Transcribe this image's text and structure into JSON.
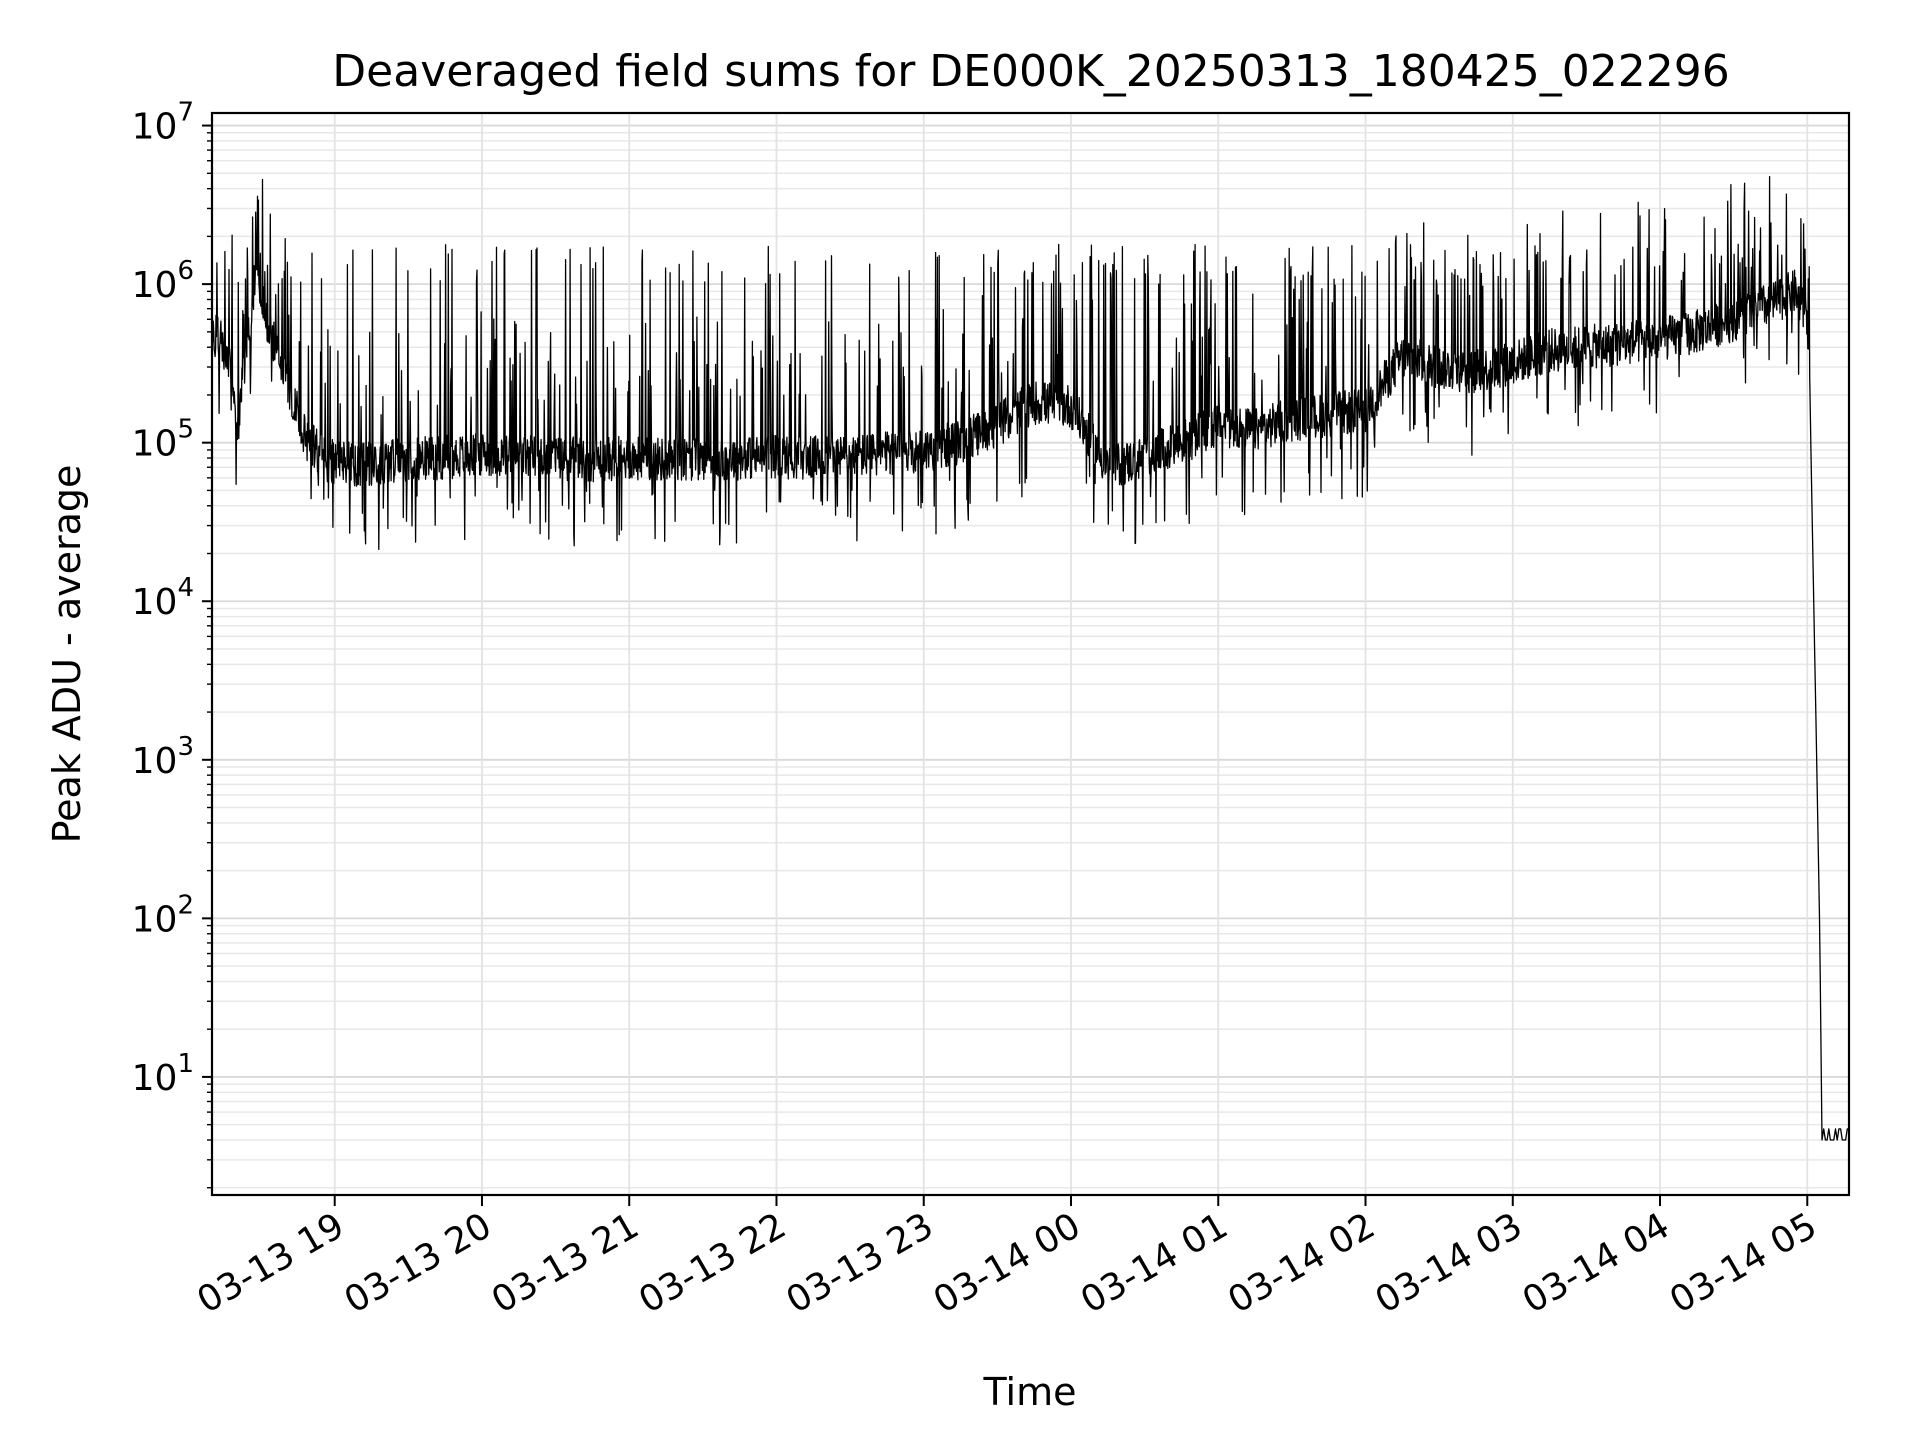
{
  "chart_data": {
    "type": "line",
    "title": "Deaveraged field sums for DE000K_20250313_180425_022296",
    "xlabel": "Time",
    "ylabel": "Peak ADU - average",
    "y_scale": "log",
    "ylim": [
      1.8,
      12000000
    ],
    "xlim": [
      "2025-03-13 18:10",
      "2025-03-14 05:17"
    ],
    "grid": true,
    "x_ticks": [
      "03-13 19",
      "03-13 20",
      "03-13 21",
      "03-13 22",
      "03-13 23",
      "03-14 00",
      "03-14 01",
      "03-14 02",
      "03-14 03",
      "03-14 04",
      "03-14 05"
    ],
    "x_tick_times": [
      "2025-03-13 19:00",
      "2025-03-13 20:00",
      "2025-03-13 21:00",
      "2025-03-13 22:00",
      "2025-03-13 23:00",
      "2025-03-14 00:00",
      "2025-03-14 01:00",
      "2025-03-14 02:00",
      "2025-03-14 03:00",
      "2025-03-14 04:00",
      "2025-03-14 05:00"
    ],
    "y_ticks": [
      {
        "value": 10,
        "base": "10",
        "exp": "1"
      },
      {
        "value": 100,
        "base": "10",
        "exp": "2"
      },
      {
        "value": 1000,
        "base": "10",
        "exp": "3"
      },
      {
        "value": 10000,
        "base": "10",
        "exp": "4"
      },
      {
        "value": 100000,
        "base": "10",
        "exp": "5"
      },
      {
        "value": 1000000,
        "base": "10",
        "exp": "6"
      },
      {
        "value": 10000000,
        "base": "10",
        "exp": "7"
      }
    ],
    "series": [
      {
        "color": "#000000",
        "x": [
          "2025-03-13 18:10",
          "2025-03-13 18:14",
          "2025-03-13 18:18",
          "2025-03-13 18:20",
          "2025-03-13 18:24",
          "2025-03-13 18:28",
          "2025-03-13 18:33",
          "2025-03-13 18:38",
          "2025-03-13 18:42",
          "2025-03-13 18:48",
          "2025-03-13 18:55",
          "2025-03-13 19:00",
          "2025-03-13 19:10",
          "2025-03-13 19:20",
          "2025-03-13 19:30",
          "2025-03-13 19:40",
          "2025-03-13 19:50",
          "2025-03-13 20:00",
          "2025-03-13 20:15",
          "2025-03-13 20:30",
          "2025-03-13 20:45",
          "2025-03-13 21:00",
          "2025-03-13 21:15",
          "2025-03-13 21:30",
          "2025-03-13 21:45",
          "2025-03-13 22:00",
          "2025-03-13 22:15",
          "2025-03-13 22:30",
          "2025-03-13 22:45",
          "2025-03-13 23:00",
          "2025-03-13 23:15",
          "2025-03-13 23:30",
          "2025-03-13 23:45",
          "2025-03-14 00:00",
          "2025-03-14 00:15",
          "2025-03-14 00:30",
          "2025-03-14 00:45",
          "2025-03-14 01:00",
          "2025-03-14 01:15",
          "2025-03-14 01:30",
          "2025-03-14 01:45",
          "2025-03-14 02:00",
          "2025-03-14 02:15",
          "2025-03-14 02:30",
          "2025-03-14 02:45",
          "2025-03-14 03:00",
          "2025-03-14 03:15",
          "2025-03-14 03:30",
          "2025-03-14 03:45",
          "2025-03-14 04:00",
          "2025-03-14 04:15",
          "2025-03-14 04:30",
          "2025-03-14 04:45",
          "2025-03-14 04:55",
          "2025-03-14 05:00",
          "2025-03-14 05:01",
          "2025-03-14 05:03",
          "2025-03-14 05:05",
          "2025-03-14 05:06",
          "2025-03-14 05:06",
          "2025-03-14 05:17"
        ],
        "y": [
          500000,
          420000,
          300000,
          110000,
          380000,
          1300000,
          500000,
          350000,
          200000,
          110000,
          80000,
          75000,
          72000,
          75000,
          78000,
          80000,
          82000,
          85000,
          82000,
          80000,
          78000,
          80000,
          78000,
          80000,
          80000,
          82000,
          80000,
          82000,
          85000,
          90000,
          100000,
          130000,
          180000,
          170000,
          70000,
          80000,
          100000,
          130000,
          120000,
          140000,
          150000,
          160000,
          350000,
          300000,
          280000,
          320000,
          380000,
          400000,
          420000,
          450000,
          500000,
          600000,
          750000,
          900000,
          600000,
          220000,
          5000,
          100,
          4,
          4,
          4
        ]
      }
    ]
  }
}
